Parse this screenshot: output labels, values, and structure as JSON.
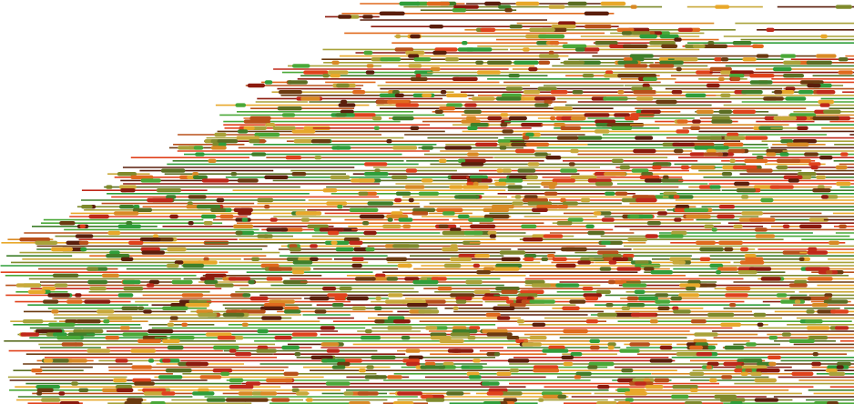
{
  "artwork": {
    "palette": [
      "#8b1a0e",
      "#c0281a",
      "#e0421c",
      "#e06a1e",
      "#d98a25",
      "#e8a82a",
      "#c9a93a",
      "#a8a23a",
      "#7f8a2c",
      "#5b6e23",
      "#3f7f2a",
      "#2f9e3a",
      "#4aa838",
      "#6b3a10",
      "#5a1e0c",
      "#b8501a"
    ],
    "background": "#ffffff"
  }
}
